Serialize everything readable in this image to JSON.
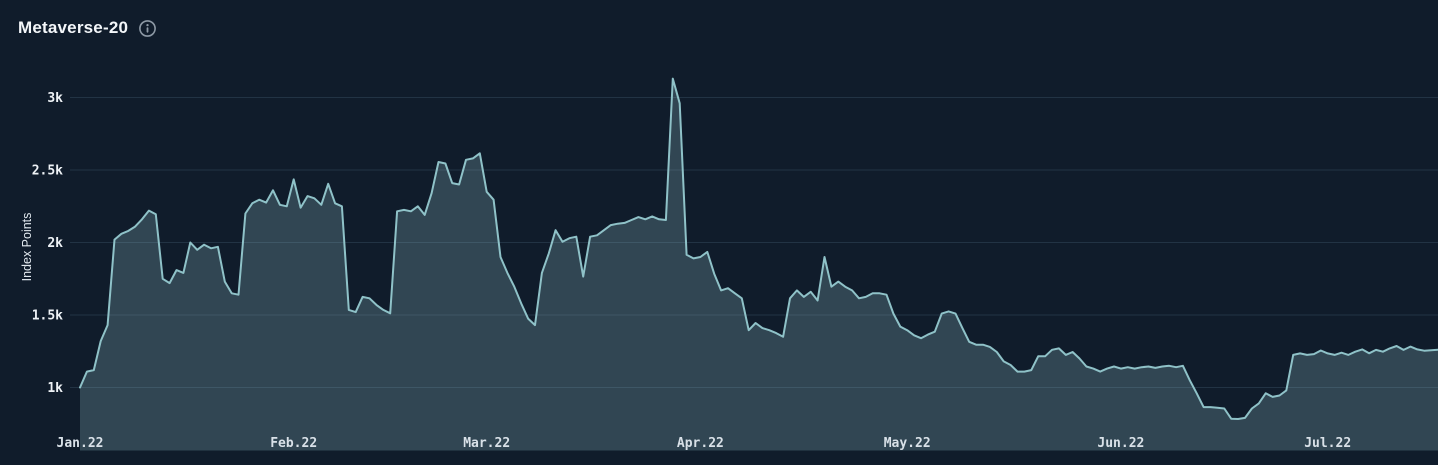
{
  "header": {
    "title": "Metaverse-20",
    "info_icon": "info-circle"
  },
  "colors": {
    "background": "#101c2b",
    "line": "#8fc2c8",
    "area_fill": "rgba(146,196,203,0.25)",
    "grid": "#223344",
    "y_tick_text": "#eef2f6",
    "x_tick_text": "#d9e1e8",
    "title_text": "#f4f7fa",
    "info_icon": "#8d99a5"
  },
  "chart_data": {
    "type": "area",
    "title": "Metaverse-20",
    "xlabel": "",
    "ylabel": "Index Points",
    "x_unit": "days since Jan 1 2022 (daily values)",
    "x_tick_labels": [
      "Jan.22",
      "Feb.22",
      "Mar.22",
      "Apr.22",
      "May.22",
      "Jun.22",
      "Jul.22"
    ],
    "x_tick_days": [
      0,
      31,
      59,
      90,
      120,
      151,
      181
    ],
    "y_tick_labels": [
      "1k",
      "1.5k",
      "2k",
      "2.5k",
      "3k"
    ],
    "y_tick_values": [
      1000,
      1500,
      2000,
      2500,
      3000
    ],
    "ylim": [
      570,
      3260
    ],
    "grid": true,
    "legend": "none",
    "series": [
      {
        "name": "Metaverse-20",
        "values": [
          1000,
          1110,
          1120,
          1320,
          1430,
          2020,
          2060,
          2080,
          2110,
          2160,
          2220,
          2195,
          1750,
          1720,
          1810,
          1790,
          2000,
          1950,
          1985,
          1960,
          1970,
          1730,
          1650,
          1640,
          2200,
          2270,
          2295,
          2275,
          2360,
          2260,
          2250,
          2435,
          2240,
          2320,
          2305,
          2260,
          2405,
          2270,
          2250,
          1535,
          1520,
          1625,
          1615,
          1570,
          1535,
          1512,
          2215,
          2225,
          2215,
          2250,
          2190,
          2340,
          2555,
          2545,
          2410,
          2400,
          2570,
          2580,
          2615,
          2350,
          2295,
          1900,
          1790,
          1695,
          1580,
          1475,
          1430,
          1790,
          1925,
          2085,
          2005,
          2030,
          2040,
          1765,
          2040,
          2050,
          2085,
          2120,
          2130,
          2135,
          2155,
          2175,
          2160,
          2180,
          2160,
          2155,
          3130,
          2960,
          1915,
          1890,
          1900,
          1935,
          1785,
          1670,
          1685,
          1650,
          1615,
          1395,
          1445,
          1410,
          1395,
          1375,
          1350,
          1615,
          1670,
          1625,
          1660,
          1600,
          1900,
          1695,
          1730,
          1695,
          1670,
          1615,
          1625,
          1650,
          1650,
          1640,
          1510,
          1420,
          1395,
          1360,
          1340,
          1365,
          1385,
          1510,
          1525,
          1510,
          1410,
          1315,
          1295,
          1295,
          1280,
          1245,
          1180,
          1155,
          1110,
          1110,
          1120,
          1215,
          1215,
          1260,
          1270,
          1225,
          1245,
          1200,
          1145,
          1130,
          1110,
          1130,
          1145,
          1130,
          1140,
          1130,
          1140,
          1145,
          1135,
          1145,
          1150,
          1140,
          1150,
          1050,
          960,
          865,
          865,
          860,
          855,
          785,
          783,
          790,
          855,
          890,
          960,
          935,
          945,
          980,
          1225,
          1235,
          1225,
          1230,
          1255,
          1235,
          1225,
          1240,
          1225,
          1247,
          1263,
          1236,
          1259,
          1247,
          1270,
          1286,
          1259,
          1282,
          1263,
          1254,
          1257,
          1260
        ]
      }
    ]
  }
}
